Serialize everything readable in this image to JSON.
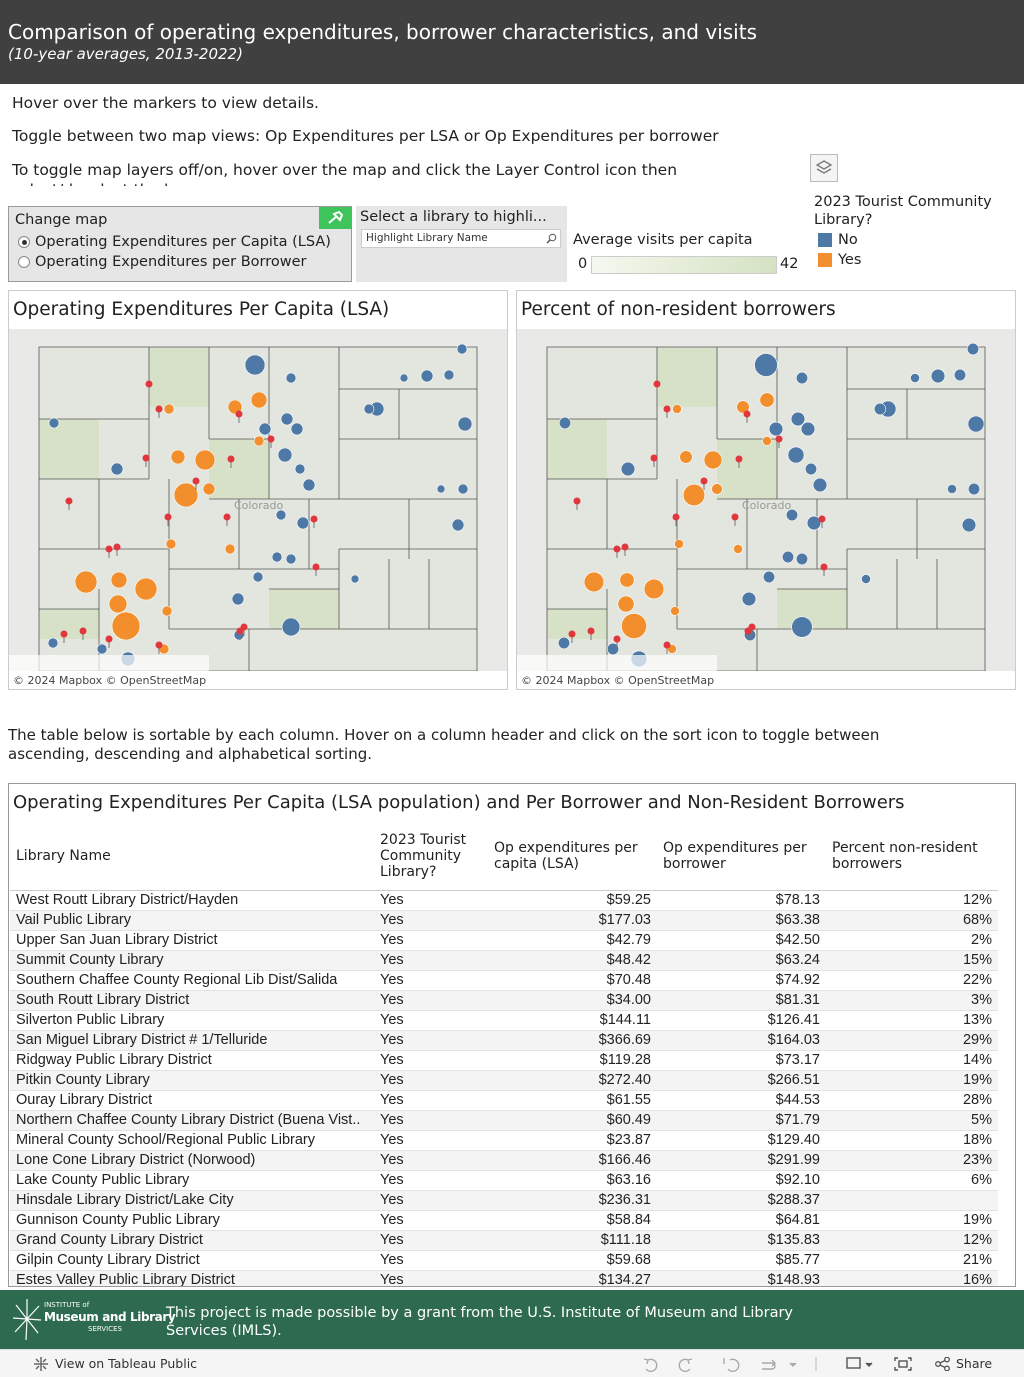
{
  "header": {
    "title": "Comparison of operating expenditures, borrower characteristics, and visits",
    "subtitle": "(10-year averages, 2013-2022)"
  },
  "instructions": [
    "Hover over the markers to view details.",
    "Toggle between two map views: Op Expenditures per LSA or Op Expenditures per borrower",
    "To toggle map layers off/on, hover over the map and click the Layer Control icon then select/deselect the layers"
  ],
  "controls": {
    "change_map": {
      "title": "Change map",
      "options": [
        "Operating Expenditures per Capita (LSA)",
        "Operating Expenditures per Borrower"
      ]
    },
    "select": {
      "label": "Select a library to highli...",
      "placeholder": "Highlight Library Name"
    }
  },
  "legend_visits": {
    "title": "Average visits per capita",
    "min": 0,
    "max": 42
  },
  "legend_tourist": {
    "title": "2023 Tourist Community Library?",
    "items": [
      {
        "label": "No",
        "color": "#4e79a7"
      },
      {
        "label": "Yes",
        "color": "#f28e2b"
      }
    ]
  },
  "maps": [
    {
      "title": "Operating Expenditures Per Capita (LSA)",
      "label": "Colorado",
      "attribution": "© 2024 Mapbox  © OpenStreetMap"
    },
    {
      "title": "Percent of non-resident borrowers",
      "label": "Colorado",
      "attribution": "© 2024 Mapbox  © OpenStreetMap"
    }
  ],
  "table_note": "The table below is sortable by each column. Hover on a column header and click on the sort icon to toggle between ascending, descending and alphabetical sorting.",
  "table": {
    "title": "Operating Expenditures Per Capita (LSA population) and Per Borrower and Non-Resident Borrowers",
    "columns": [
      "Library Name",
      "2023 Tourist Community Library?",
      "Op expenditures per capita (LSA)",
      "Op expenditures per borrower",
      "Percent non-resident borrowers"
    ],
    "rows": [
      [
        "West Routt Library District/Hayden",
        "Yes",
        "$59.25",
        "$78.13",
        "12%"
      ],
      [
        "Vail Public Library",
        "Yes",
        "$177.03",
        "$63.38",
        "68%"
      ],
      [
        "Upper San Juan Library District",
        "Yes",
        "$42.79",
        "$42.50",
        "2%"
      ],
      [
        "Summit County Library",
        "Yes",
        "$48.42",
        "$63.24",
        "15%"
      ],
      [
        "Southern Chaffee County Regional Lib Dist/Salida",
        "Yes",
        "$70.48",
        "$74.92",
        "22%"
      ],
      [
        "South Routt Library District",
        "Yes",
        "$34.00",
        "$81.31",
        "3%"
      ],
      [
        "Silverton Public Library",
        "Yes",
        "$144.11",
        "$126.41",
        "13%"
      ],
      [
        "San Miguel Library District # 1/Telluride",
        "Yes",
        "$366.69",
        "$164.03",
        "29%"
      ],
      [
        "Ridgway Public Library District",
        "Yes",
        "$119.28",
        "$73.17",
        "14%"
      ],
      [
        "Pitkin County Library",
        "Yes",
        "$272.40",
        "$266.51",
        "19%"
      ],
      [
        "Ouray Library District",
        "Yes",
        "$61.55",
        "$44.53",
        "28%"
      ],
      [
        "Northern Chaffee County Library District (Buena Vist..",
        "Yes",
        "$60.49",
        "$71.79",
        "5%"
      ],
      [
        "Mineral County School/Regional Public Library",
        "Yes",
        "$23.87",
        "$129.40",
        "18%"
      ],
      [
        "Lone Cone Library District (Norwood)",
        "Yes",
        "$166.46",
        "$291.99",
        "23%"
      ],
      [
        "Lake County Public Library",
        "Yes",
        "$63.16",
        "$92.10",
        "6%"
      ],
      [
        "Hinsdale Library District/Lake City",
        "Yes",
        "$236.31",
        "$288.37",
        null
      ],
      [
        "Gunnison County Public Library",
        "Yes",
        "$58.84",
        "$64.81",
        "19%"
      ],
      [
        "Grand County Library District",
        "Yes",
        "$111.18",
        "$135.83",
        "12%"
      ],
      [
        "Gilpin County Library District",
        "Yes",
        "$59.68",
        "$85.77",
        "21%"
      ],
      [
        "Estes Valley Public Library District",
        "Yes",
        "$134.27",
        "$148.93",
        "16%"
      ]
    ]
  },
  "footer": {
    "text": "This project is made possible by a grant from the U.S. Institute of Museum and Library Services (IMLS).",
    "logo_top": "INSTITUTE of",
    "logo_main": "Museum and Library",
    "logo_bottom": "SERVICES"
  },
  "toolbar": {
    "view": "View on Tableau Public",
    "share": "Share"
  }
}
